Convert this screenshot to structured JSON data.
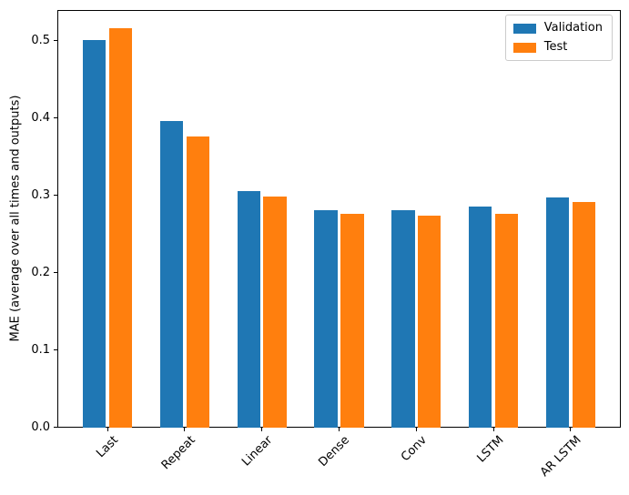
{
  "figure": {
    "background": "#ffffff",
    "axes_edge_color": "#000000"
  },
  "chart_data": {
    "type": "bar",
    "title": "",
    "xlabel": "",
    "ylabel": "MAE (average over all times and outputs)",
    "categories": [
      "Last",
      "Repeat",
      "Linear",
      "Dense",
      "Conv",
      "LSTM",
      "AR LSTM"
    ],
    "series": [
      {
        "name": "Validation",
        "color": "#1f77b4",
        "values": [
          0.501,
          0.396,
          0.306,
          0.281,
          0.281,
          0.286,
          0.298
        ]
      },
      {
        "name": "Test",
        "color": "#ff7f0e",
        "values": [
          0.516,
          0.377,
          0.299,
          0.276,
          0.274,
          0.277,
          0.292
        ]
      }
    ],
    "ylim": [
      0,
      0.54
    ],
    "xlim": [
      -0.65,
      6.65
    ],
    "yticks": [
      {
        "value": 0.0,
        "label": "0.0"
      },
      {
        "value": 0.1,
        "label": "0.1"
      },
      {
        "value": 0.2,
        "label": "0.2"
      },
      {
        "value": 0.3,
        "label": "0.3"
      },
      {
        "value": 0.4,
        "label": "0.4"
      },
      {
        "value": 0.5,
        "label": "0.5"
      }
    ],
    "bar_width_units": 0.3,
    "bar_offset_units": 0.17,
    "xtick_rotation_deg": 45,
    "grid": false,
    "legend": {
      "position": "upper-right",
      "entries": [
        "Validation",
        "Test"
      ]
    }
  }
}
